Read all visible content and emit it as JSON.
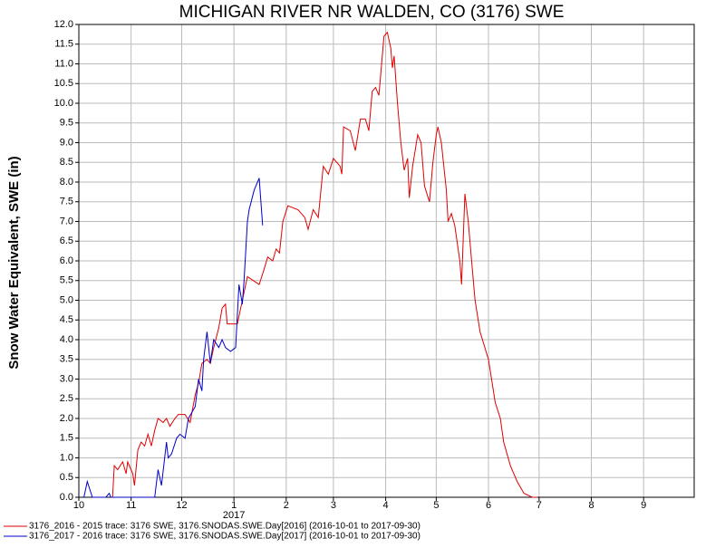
{
  "chart_data": {
    "type": "line",
    "title": "MICHIGAN RIVER NR WALDEN, CO (3176) SWE",
    "y_label": "Snow Water Equivalent, SWE (in)",
    "xlim": [
      "2016-10-01",
      "2017-10-01"
    ],
    "xticks": [
      {
        "value": "2016-10-01",
        "label": "10"
      },
      {
        "value": "2016-11-01",
        "label": "11"
      },
      {
        "value": "2016-12-01",
        "label": "12"
      },
      {
        "value": "2017-01-01",
        "label": "1"
      },
      {
        "value": "2017-02-01",
        "label": "2"
      },
      {
        "value": "2017-03-01",
        "label": "3"
      },
      {
        "value": "2017-04-01",
        "label": "4"
      },
      {
        "value": "2017-05-01",
        "label": "5"
      },
      {
        "value": "2017-06-01",
        "label": "6"
      },
      {
        "value": "2017-07-01",
        "label": "7"
      },
      {
        "value": "2017-08-01",
        "label": "8"
      },
      {
        "value": "2017-09-01",
        "label": "9"
      }
    ],
    "x_year_label": {
      "value": "2017-01-01",
      "label": "2017"
    },
    "ylim": [
      0,
      12
    ],
    "yticks": [
      {
        "value": 0,
        "label": "0.0"
      },
      0.5,
      {
        "value": 1,
        "label": "1.0"
      },
      1.5,
      {
        "value": 2,
        "label": "2.0"
      },
      2.5,
      {
        "value": 3,
        "label": "3.0"
      },
      3.5,
      {
        "value": 4,
        "label": "4.0"
      },
      4.5,
      {
        "value": 5,
        "label": "5.0"
      },
      5.5,
      {
        "value": 6,
        "label": "6.0"
      },
      6.5,
      {
        "value": 7,
        "label": "7.0"
      },
      7.5,
      {
        "value": 8,
        "label": "8.0"
      },
      8.5,
      {
        "value": 9,
        "label": "9.0"
      },
      9.5,
      {
        "value": 10,
        "label": "10.0"
      },
      10.5,
      {
        "value": 11,
        "label": "11.0"
      },
      11.5,
      {
        "value": 12,
        "label": "12.0"
      }
    ],
    "grid": true,
    "legend": "bottom",
    "series": [
      {
        "name": "3176_2016 - 2015 trace: 3176 SWE, 3176.SNODAS.SWE.Day[2016] (2016-10-01 to 2017-09-30)",
        "color": "#e00000",
        "x": [
          "2016-10-21",
          "2016-10-22",
          "2016-10-24",
          "2016-10-27",
          "2016-10-29",
          "2016-10-30",
          "2016-11-02",
          "2016-11-03",
          "2016-11-05",
          "2016-11-07",
          "2016-11-09",
          "2016-11-11",
          "2016-11-13",
          "2016-11-15",
          "2016-11-17",
          "2016-11-20",
          "2016-11-22",
          "2016-11-24",
          "2016-11-27",
          "2016-11-29",
          "2016-12-03",
          "2016-12-06",
          "2016-12-09",
          "2016-12-11",
          "2016-12-13",
          "2016-12-16",
          "2016-12-18",
          "2016-12-20",
          "2016-12-23",
          "2016-12-25",
          "2016-12-27",
          "2016-12-28",
          "2017-01-03",
          "2017-01-09",
          "2017-01-16",
          "2017-01-19",
          "2017-01-21",
          "2017-01-24",
          "2017-01-26",
          "2017-01-28",
          "2017-01-30",
          "2017-02-02",
          "2017-02-08",
          "2017-02-12",
          "2017-02-14",
          "2017-02-17",
          "2017-02-20",
          "2017-02-23",
          "2017-02-26",
          "2017-03-01",
          "2017-03-05",
          "2017-03-06",
          "2017-03-07",
          "2017-03-11",
          "2017-03-14",
          "2017-03-17",
          "2017-03-20",
          "2017-03-22",
          "2017-03-24",
          "2017-03-26",
          "2017-03-28",
          "2017-03-31",
          "2017-04-02",
          "2017-04-04",
          "2017-04-05",
          "2017-04-06",
          "2017-04-08",
          "2017-04-10",
          "2017-04-12",
          "2017-04-14",
          "2017-04-15",
          "2017-04-17",
          "2017-04-20",
          "2017-04-22",
          "2017-04-24",
          "2017-04-27",
          "2017-04-29",
          "2017-05-01",
          "2017-05-02",
          "2017-05-04",
          "2017-05-07",
          "2017-05-08",
          "2017-05-10",
          "2017-05-12",
          "2017-05-15",
          "2017-05-16",
          "2017-05-18",
          "2017-05-20",
          "2017-05-22",
          "2017-05-24",
          "2017-05-27",
          "2017-06-01",
          "2017-06-05",
          "2017-06-08",
          "2017-06-10",
          "2017-06-14",
          "2017-06-18",
          "2017-06-22",
          "2017-06-27",
          "2017-06-30"
        ],
        "values": [
          0.0,
          0.8,
          0.7,
          0.9,
          0.6,
          0.9,
          0.6,
          0.3,
          1.2,
          1.4,
          1.3,
          1.6,
          1.3,
          1.7,
          2.0,
          1.9,
          2.0,
          1.8,
          2.0,
          2.1,
          2.1,
          1.9,
          2.6,
          2.9,
          3.4,
          3.5,
          3.4,
          3.8,
          4.3,
          4.8,
          4.9,
          4.4,
          4.4,
          5.6,
          5.4,
          5.8,
          6.1,
          6.0,
          6.3,
          6.2,
          7.0,
          7.4,
          7.3,
          7.1,
          6.8,
          7.3,
          7.1,
          8.4,
          8.2,
          8.6,
          8.4,
          8.2,
          9.4,
          9.3,
          8.8,
          9.6,
          9.6,
          9.3,
          10.3,
          10.4,
          10.2,
          11.7,
          11.8,
          11.4,
          10.9,
          11.2,
          10.0,
          9.0,
          8.3,
          8.6,
          7.6,
          8.4,
          9.2,
          9.0,
          7.9,
          7.5,
          8.5,
          9.2,
          9.4,
          9.0,
          7.8,
          7.0,
          7.2,
          6.9,
          6.0,
          5.4,
          7.7,
          7.0,
          6.0,
          5.0,
          4.2,
          3.5,
          2.4,
          2.0,
          1.4,
          0.8,
          0.4,
          0.1,
          0.0,
          0.0
        ]
      },
      {
        "name": "3176_2017 - 2016 trace: 3176 SWE, 3176.SNODAS.SWE.Day[2017] (2016-10-01 to 2017-09-30)",
        "color": "#0000cc",
        "x": [
          "2016-10-04",
          "2016-10-06",
          "2016-10-09",
          "2016-10-17",
          "2016-10-19",
          "2016-10-20",
          "2016-11-15",
          "2016-11-17",
          "2016-11-19",
          "2016-11-22",
          "2016-11-23",
          "2016-11-25",
          "2016-11-28",
          "2016-11-30",
          "2016-12-03",
          "2016-12-05",
          "2016-12-09",
          "2016-12-11",
          "2016-12-13",
          "2016-12-14",
          "2016-12-16",
          "2016-12-18",
          "2016-12-20",
          "2016-12-23",
          "2016-12-25",
          "2016-12-27",
          "2016-12-30",
          "2017-01-02",
          "2017-01-04",
          "2017-01-06",
          "2017-01-07",
          "2017-01-09",
          "2017-01-10",
          "2017-01-13",
          "2017-01-16",
          "2017-01-18"
        ],
        "values": [
          0.0,
          0.4,
          0.0,
          0.0,
          0.1,
          0.0,
          0.0,
          0.7,
          0.3,
          1.4,
          1.0,
          1.1,
          1.5,
          1.6,
          1.5,
          2.0,
          2.3,
          3.0,
          2.7,
          3.5,
          4.2,
          3.4,
          4.0,
          3.8,
          4.0,
          3.8,
          3.7,
          3.8,
          5.4,
          4.9,
          5.5,
          7.0,
          7.3,
          7.8,
          8.1,
          6.9
        ]
      }
    ]
  }
}
